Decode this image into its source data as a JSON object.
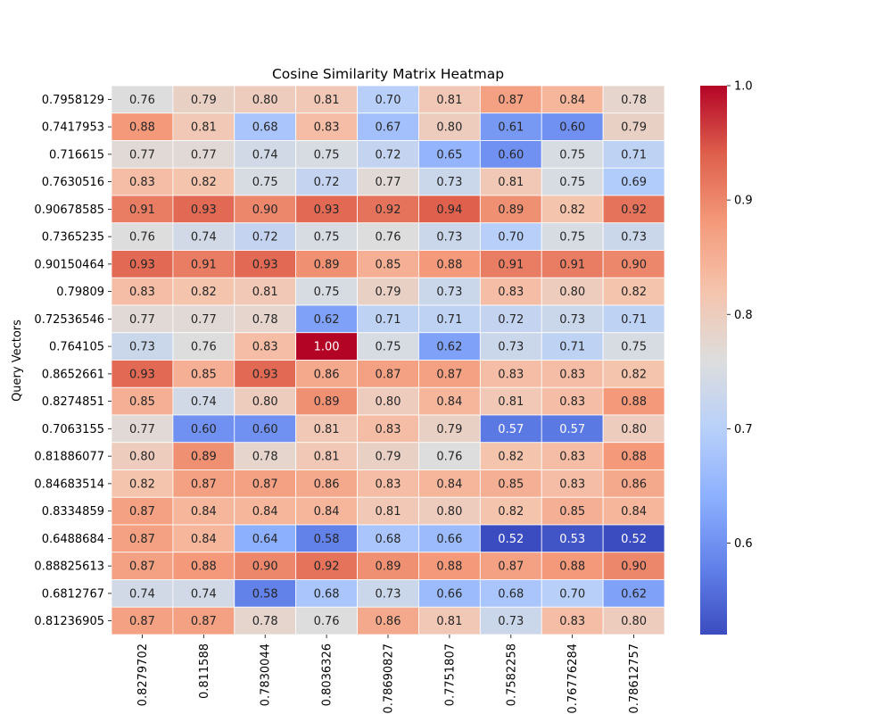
{
  "chart_data": {
    "type": "heatmap",
    "title": "Cosine Similarity Matrix Heatmap",
    "ylabel": "Query Vectors",
    "xlabel": "",
    "colormap": "coolwarm",
    "vmin": 0.52,
    "vmax": 1.0,
    "annotation_format": "0.00",
    "colorbar_ticks": [
      "0.6",
      "0.7",
      "0.8",
      "0.9",
      "1.0"
    ],
    "columns": [
      "0.8279702",
      "0.811588",
      "0.7830044",
      "0.8036326",
      "0.78690827",
      "0.7751807",
      "0.7582258",
      "0.76776284",
      "0.78612757"
    ],
    "rows": [
      "0.7958129",
      "0.7417953",
      "0.716615",
      "0.7630516",
      "0.90678585",
      "0.7365235",
      "0.90150464",
      "0.79809",
      "0.72536546",
      "0.764105",
      "0.8652661",
      "0.8274851",
      "0.7063155",
      "0.81886077",
      "0.84683514",
      "0.8334859",
      "0.6488684",
      "0.88825613",
      "0.6812767",
      "0.81236905"
    ],
    "values": [
      [
        0.76,
        0.79,
        0.8,
        0.81,
        0.7,
        0.81,
        0.87,
        0.84,
        0.78
      ],
      [
        0.88,
        0.81,
        0.68,
        0.83,
        0.67,
        0.8,
        0.61,
        0.6,
        0.79
      ],
      [
        0.77,
        0.77,
        0.74,
        0.75,
        0.72,
        0.65,
        0.6,
        0.75,
        0.71
      ],
      [
        0.83,
        0.82,
        0.75,
        0.72,
        0.77,
        0.73,
        0.81,
        0.75,
        0.69
      ],
      [
        0.91,
        0.93,
        0.9,
        0.93,
        0.92,
        0.94,
        0.89,
        0.82,
        0.92
      ],
      [
        0.76,
        0.74,
        0.72,
        0.75,
        0.76,
        0.73,
        0.7,
        0.75,
        0.73
      ],
      [
        0.93,
        0.91,
        0.93,
        0.89,
        0.85,
        0.88,
        0.91,
        0.91,
        0.9
      ],
      [
        0.83,
        0.82,
        0.81,
        0.75,
        0.79,
        0.73,
        0.83,
        0.8,
        0.82
      ],
      [
        0.77,
        0.77,
        0.78,
        0.62,
        0.71,
        0.71,
        0.72,
        0.73,
        0.71
      ],
      [
        0.73,
        0.76,
        0.83,
        1.0,
        0.75,
        0.62,
        0.73,
        0.71,
        0.75
      ],
      [
        0.93,
        0.85,
        0.93,
        0.86,
        0.87,
        0.87,
        0.83,
        0.83,
        0.82
      ],
      [
        0.85,
        0.74,
        0.8,
        0.89,
        0.8,
        0.84,
        0.81,
        0.83,
        0.88
      ],
      [
        0.77,
        0.6,
        0.6,
        0.81,
        0.83,
        0.79,
        0.57,
        0.57,
        0.8
      ],
      [
        0.8,
        0.89,
        0.78,
        0.81,
        0.79,
        0.76,
        0.82,
        0.83,
        0.88
      ],
      [
        0.82,
        0.87,
        0.87,
        0.86,
        0.83,
        0.84,
        0.85,
        0.83,
        0.86
      ],
      [
        0.87,
        0.84,
        0.84,
        0.84,
        0.81,
        0.8,
        0.82,
        0.85,
        0.84
      ],
      [
        0.87,
        0.84,
        0.64,
        0.58,
        0.68,
        0.66,
        0.52,
        0.53,
        0.52
      ],
      [
        0.87,
        0.88,
        0.9,
        0.92,
        0.89,
        0.88,
        0.87,
        0.88,
        0.9
      ],
      [
        0.74,
        0.74,
        0.58,
        0.68,
        0.73,
        0.66,
        0.68,
        0.7,
        0.62
      ],
      [
        0.87,
        0.87,
        0.78,
        0.76,
        0.86,
        0.81,
        0.73,
        0.83,
        0.8
      ]
    ]
  }
}
